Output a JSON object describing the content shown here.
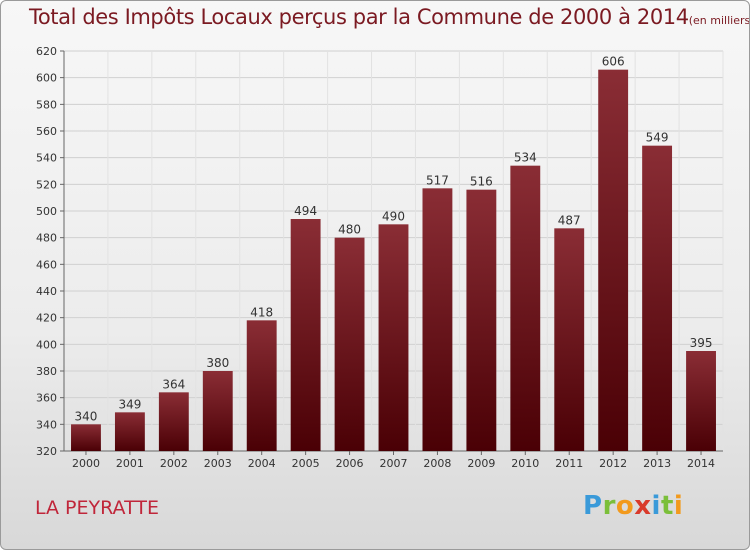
{
  "chart_data": {
    "type": "bar",
    "title": "Total des Impôts Locaux perçus par la Commune de 2000 à 2014",
    "title_unit": "(en milliers d'€)",
    "categories": [
      "2000",
      "2001",
      "2002",
      "2003",
      "2004",
      "2005",
      "2006",
      "2007",
      "2008",
      "2009",
      "2010",
      "2011",
      "2012",
      "2013",
      "2014"
    ],
    "values": [
      340,
      349,
      364,
      380,
      418,
      494,
      480,
      490,
      517,
      516,
      534,
      487,
      606,
      549,
      395
    ],
    "ylim": [
      320,
      620
    ],
    "yticks": [
      320,
      340,
      360,
      380,
      400,
      420,
      440,
      460,
      480,
      500,
      520,
      540,
      560,
      580,
      600,
      620
    ],
    "grid": true,
    "bar_color_top": "#8a2d35",
    "bar_color_bottom": "#4a0005"
  },
  "commune": "LA PEYRATTE",
  "logo": "Proxiti"
}
